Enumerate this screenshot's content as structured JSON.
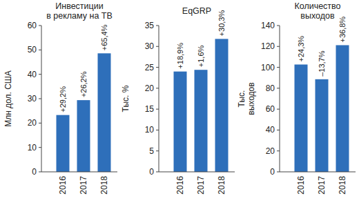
{
  "chart_data": [
    {
      "type": "bar",
      "title": [
        "Инвестиции",
        "в рекламу на ТВ"
      ],
      "ylabel": [
        "Млн дол. США"
      ],
      "categories": [
        "2016",
        "2017",
        "2018"
      ],
      "values": [
        23.3,
        29.4,
        48.6
      ],
      "annotations": [
        "+29,2%",
        "+26,2%",
        "+65,4%"
      ],
      "color": "#2e6fba",
      "ylim": [
        0,
        60
      ],
      "yticks": [
        0,
        10,
        20,
        30,
        40,
        50,
        60
      ],
      "grid": false
    },
    {
      "type": "bar",
      "title": [
        "EqGRP"
      ],
      "ylabel": [
        "Тыс. %"
      ],
      "categories": [
        "2016",
        "2017",
        "2018"
      ],
      "values": [
        24.0,
        24.4,
        31.8
      ],
      "annotations": [
        "+18,9%",
        "+1,6%",
        "+30,3%"
      ],
      "color": "#2e6fba",
      "ylim": [
        0,
        35
      ],
      "yticks": [
        0,
        5,
        10,
        15,
        20,
        25,
        30,
        35
      ],
      "grid": false
    },
    {
      "type": "bar",
      "title": [
        "Количество",
        "выходов"
      ],
      "ylabel": [
        "Тыс.",
        "выходов"
      ],
      "categories": [
        "2016",
        "2017",
        "2018"
      ],
      "values": [
        102.7,
        88.6,
        121.2
      ],
      "annotations": [
        "+24,3%",
        "–13,7%",
        "+36,8%"
      ],
      "color": "#2e6fba",
      "ylim": [
        0,
        140
      ],
      "yticks": [
        0,
        20,
        40,
        60,
        80,
        100,
        120,
        140
      ],
      "grid": false
    }
  ]
}
